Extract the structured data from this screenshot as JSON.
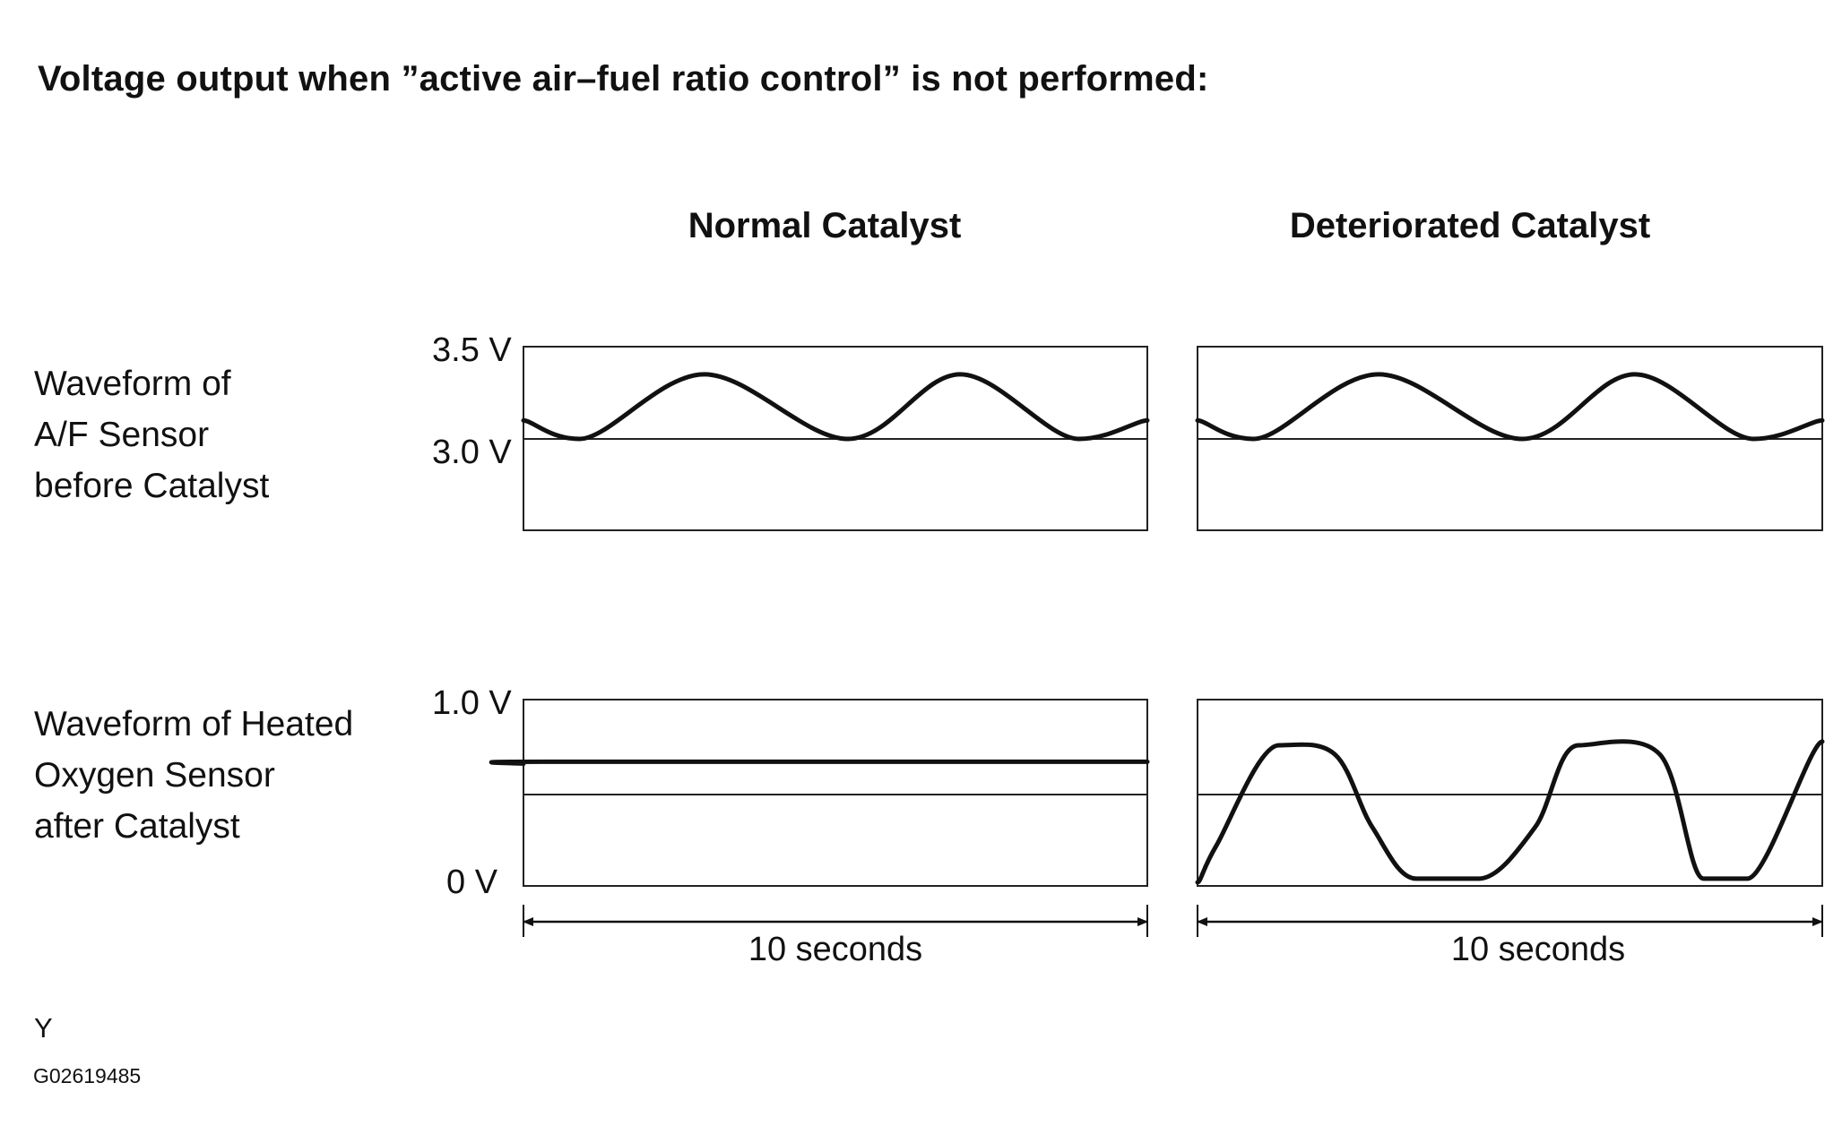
{
  "title": "Voltage output when ”active air–fuel ratio control” is not performed:",
  "columns": {
    "normal": "Normal Catalyst",
    "deteriorated": "Deteriorated Catalyst"
  },
  "rows": {
    "af_sensor": {
      "label_lines": [
        "Waveform of",
        "A/F Sensor",
        "before Catalyst"
      ],
      "y_top_label": "3.5 V",
      "y_mid_label": "3.0 V"
    },
    "oxygen_sensor": {
      "label_lines": [
        "Waveform of Heated",
        "Oxygen Sensor",
        "after Catalyst"
      ],
      "y_top_label": "1.0 V",
      "y_bottom_label": "0 V"
    }
  },
  "time_span_label": "10 seconds",
  "footer": {
    "mark": "Y",
    "code": "G02619485"
  },
  "chart_data": [
    {
      "type": "line",
      "panel": "A/F Sensor before Catalyst — Normal Catalyst",
      "x_range": [
        0,
        10
      ],
      "y_labels": [
        "3.5 V",
        "3.0 V"
      ],
      "shape": "sinusoid",
      "peaks": 2,
      "x": [
        0,
        0.9,
        2.9,
        5.2,
        7.0,
        8.9,
        10
      ],
      "values": [
        3.1,
        3.0,
        3.35,
        3.0,
        3.35,
        3.0,
        3.1
      ]
    },
    {
      "type": "line",
      "panel": "A/F Sensor before Catalyst — Deteriorated Catalyst",
      "x_range": [
        0,
        10
      ],
      "y_labels": [
        "3.5 V",
        "3.0 V"
      ],
      "shape": "sinusoid",
      "peaks": 2,
      "x": [
        0,
        0.9,
        2.9,
        5.2,
        7.0,
        8.9,
        10
      ],
      "values": [
        3.1,
        3.0,
        3.35,
        3.0,
        3.35,
        3.0,
        3.1
      ]
    },
    {
      "type": "line",
      "panel": "Heated Oxygen Sensor after Catalyst — Normal Catalyst",
      "x_range": [
        0,
        10
      ],
      "y_labels": [
        "1.0 V",
        "0 V"
      ],
      "shape": "flat",
      "x": [
        0,
        0.3,
        10
      ],
      "values": [
        0.65,
        0.66,
        0.66
      ]
    },
    {
      "type": "line",
      "panel": "Heated Oxygen Sensor after Catalyst — Deteriorated Catalyst",
      "x_range": [
        0,
        10
      ],
      "y_labels": [
        "1.0 V",
        "0 V"
      ],
      "shape": "square-like oscillation",
      "x": [
        0,
        0.3,
        1.3,
        2.2,
        2.8,
        3.5,
        4.5,
        5.4,
        6.1,
        7.4,
        8.1,
        8.8,
        10
      ],
      "values": [
        0.0,
        0.2,
        0.75,
        0.7,
        0.3,
        0.02,
        0.02,
        0.3,
        0.75,
        0.7,
        0.02,
        0.02,
        0.77
      ]
    }
  ]
}
